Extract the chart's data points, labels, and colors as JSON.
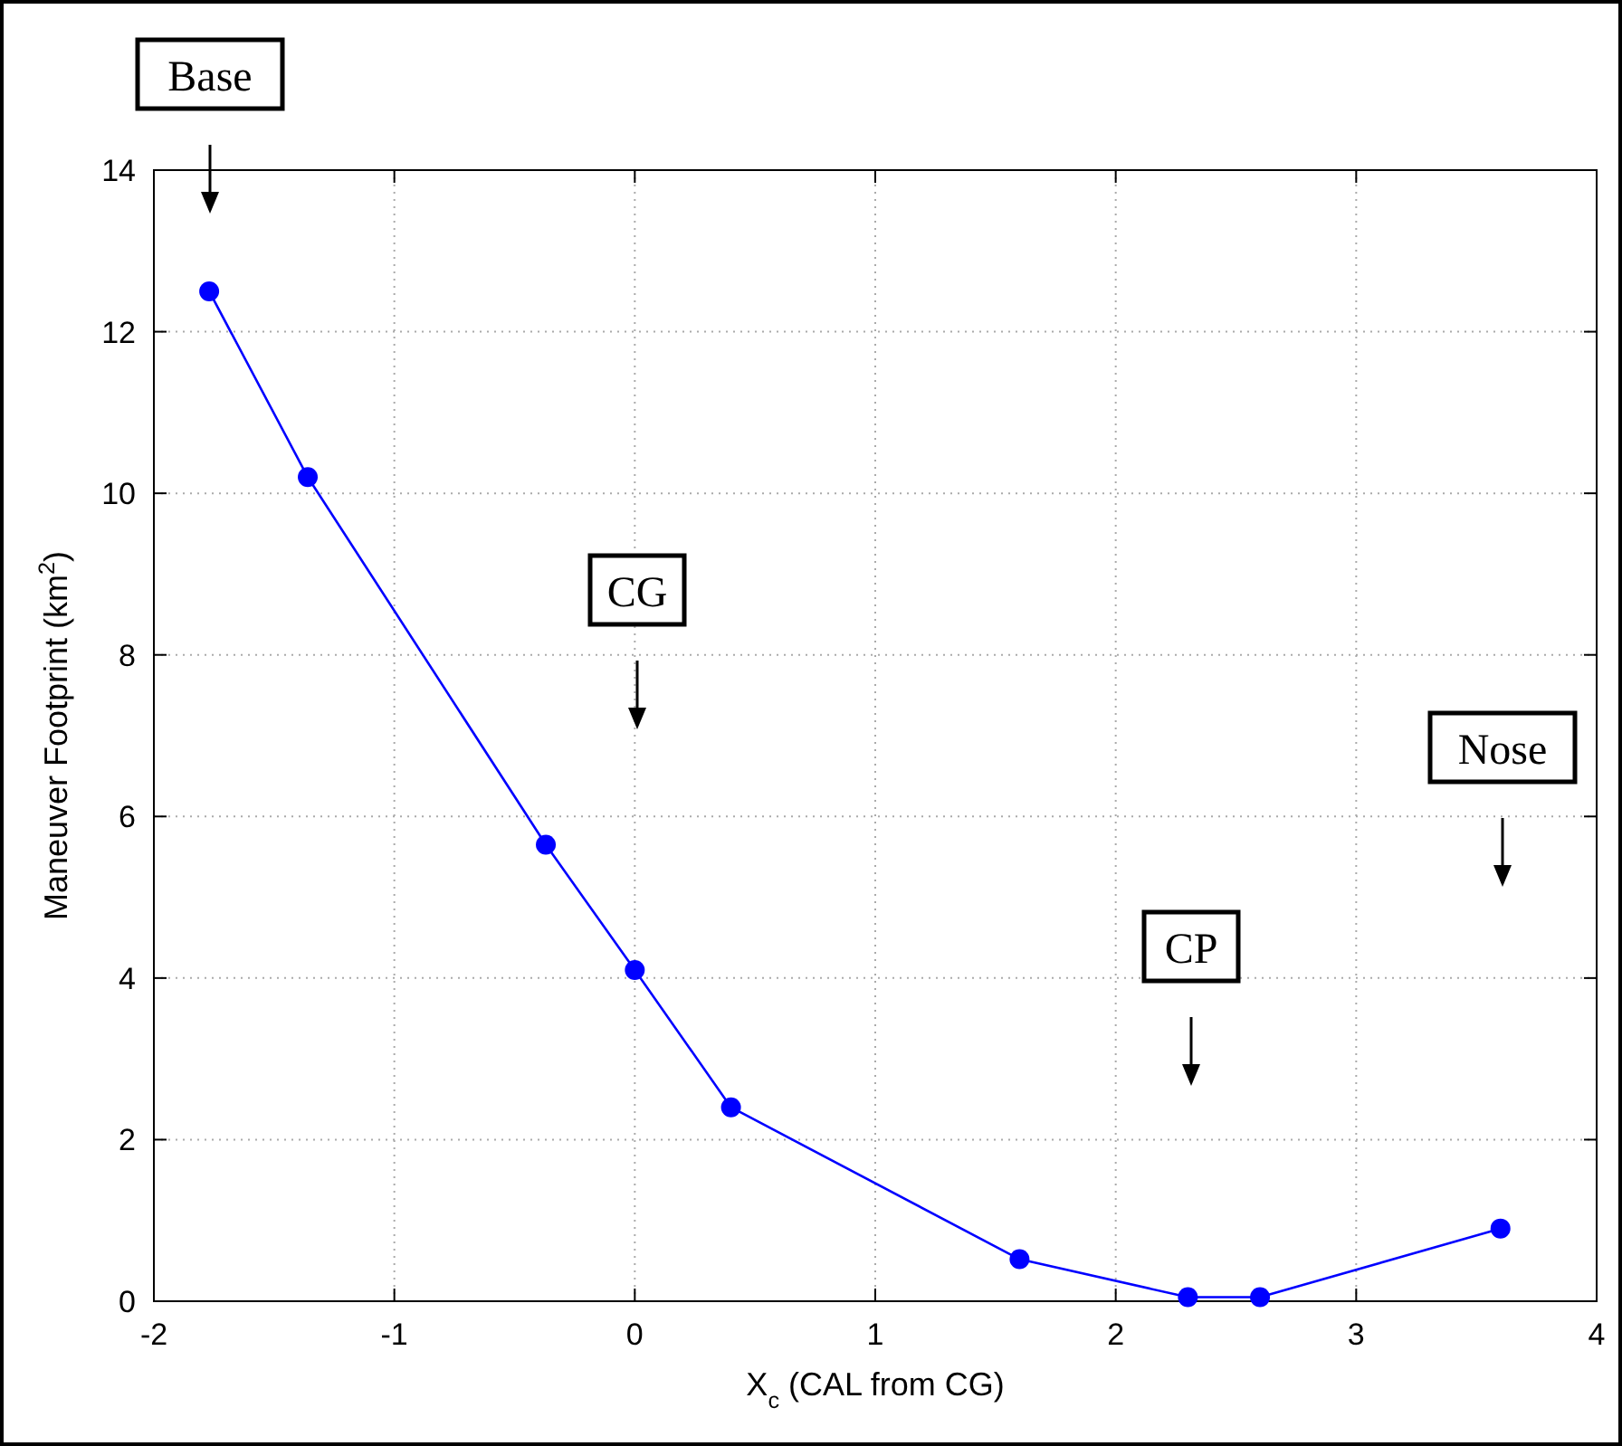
{
  "chart_data": {
    "type": "line",
    "xlabel": "X$_{c}$ (CAL from CG)",
    "ylabel": "Maneuver Footprint (km$^{2}$)",
    "series": [
      {
        "color": "#0000ff",
        "x": [
          -1.77,
          -1.36,
          -0.37,
          0,
          0.4,
          1.6,
          2.3,
          2.6,
          3.6
        ],
        "values": [
          12.5,
          10.2,
          5.65,
          4.1,
          2.4,
          0.52,
          0.05,
          0.05,
          0.9
        ]
      }
    ],
    "xlim": [
      -2,
      4
    ],
    "xticks": [
      -2,
      -1,
      0,
      1,
      2,
      3,
      4
    ],
    "ylim": [
      0,
      14
    ],
    "yticks": [
      0,
      2,
      4,
      6,
      8,
      10,
      12,
      14
    ],
    "grid": true,
    "marker": "circle",
    "line_style": "solid",
    "annotations": [
      "Base",
      "CG",
      "CP",
      "Nose"
    ]
  }
}
